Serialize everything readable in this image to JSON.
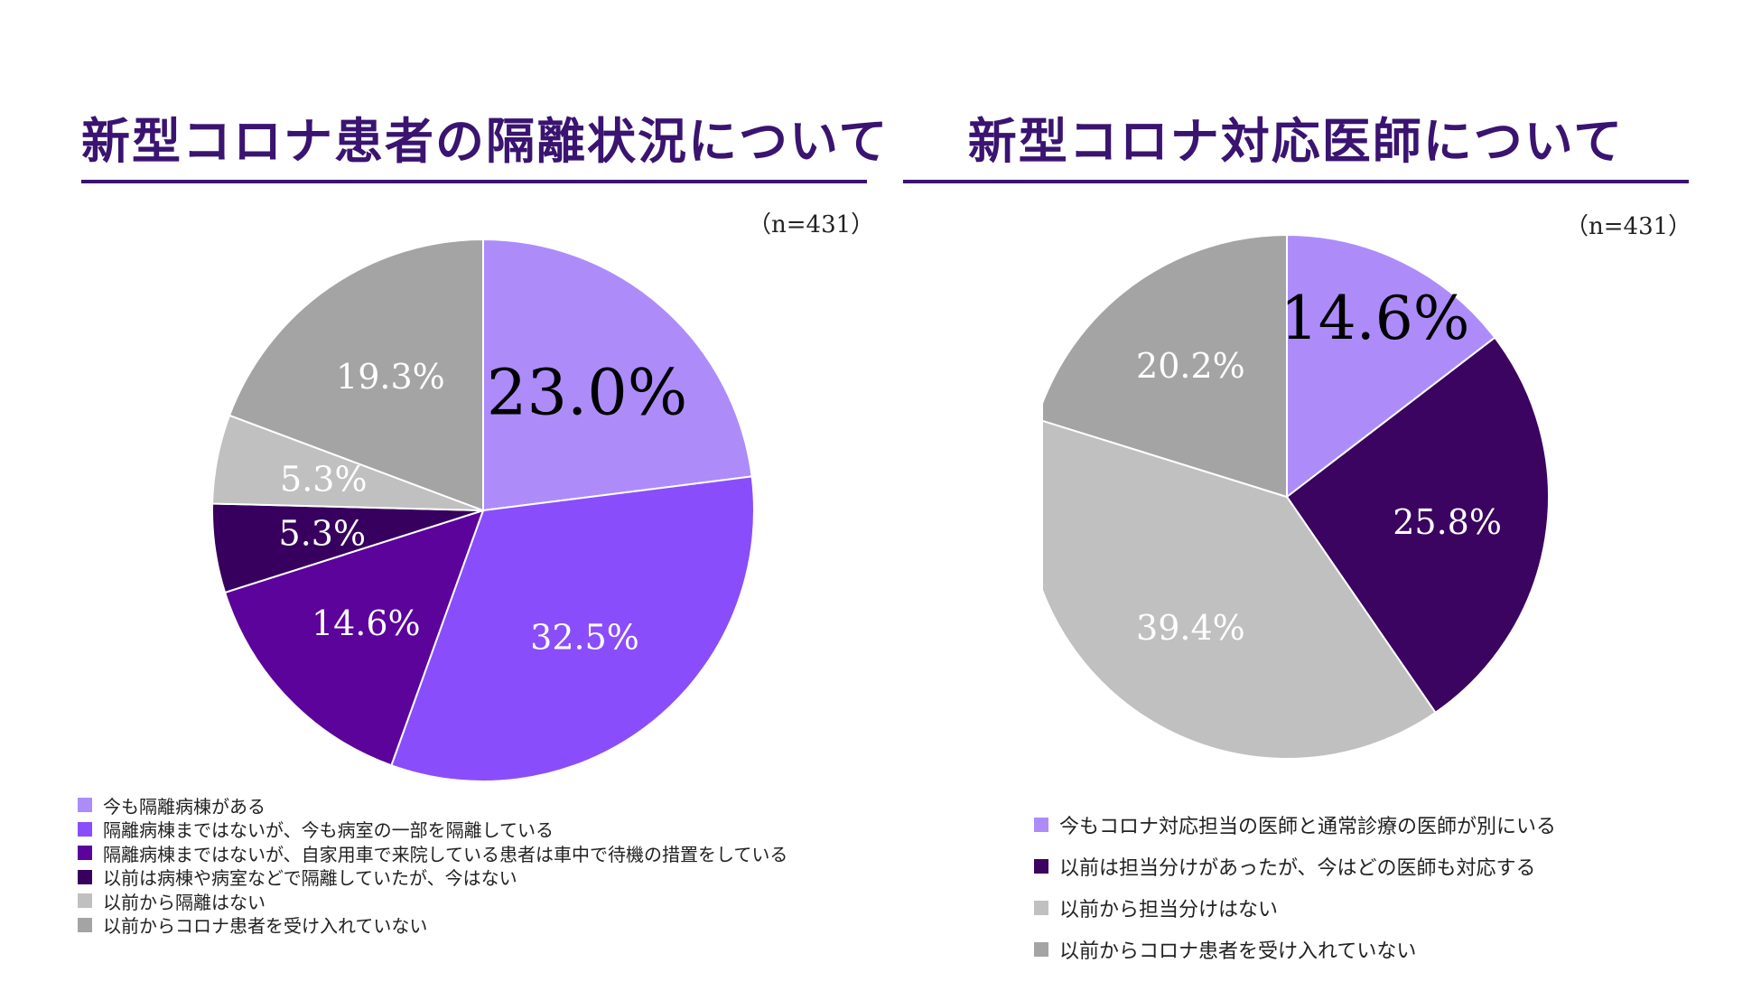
{
  "charts": [
    {
      "title": "新型コロナ患者の隔離状況について",
      "n_label": "（n=431）",
      "legend": [
        "今も隔離病棟がある",
        "隔離病棟まではないが、今も病室の一部を隔離している",
        "隔離病棟まではないが、自家用車で来院している患者は車中で待機の措置をしている",
        "以前は病棟や病室などで隔離していたが、今はない",
        "以前から隔離はない",
        "以前からコロナ患者を受け入れていない"
      ]
    },
    {
      "title": "新型コロナ対応医師について",
      "n_label": "（n=431）",
      "legend": [
        "今もコロナ対応担当の医師と通常診療の医師が別にいる",
        "以前は担当分けがあったが、今はどの医師も対応する",
        "以前から担当分けはない",
        "以前からコロナ患者を受け入れていない"
      ]
    }
  ],
  "chart_data": [
    {
      "type": "pie",
      "title": "新型コロナ患者の隔離状況について",
      "n": 431,
      "start_angle": "12 o'clock",
      "direction": "clockwise",
      "slices": [
        {
          "label": "今も隔離病棟がある",
          "value": 23.0,
          "display": "23.0%",
          "color": "#ad8cfa",
          "text_color": "#000000",
          "emphasis": true
        },
        {
          "label": "隔離病棟まではないが、今も病室の一部を隔離している",
          "value": 32.5,
          "display": "32.5%",
          "color": "#8a4dfb",
          "text_color": "#ffffff",
          "emphasis": false
        },
        {
          "label": "隔離病棟まではないが、自家用車で来院している患者は車中で待機の措置をしている",
          "value": 14.6,
          "display": "14.6%",
          "color": "#5b039b",
          "text_color": "#ffffff",
          "emphasis": false
        },
        {
          "label": "以前は病棟や病室などで隔離していたが、今はない",
          "value": 5.3,
          "display": "5.3%",
          "color": "#38005e",
          "text_color": "#ffffff",
          "emphasis": false
        },
        {
          "label": "以前から隔離はない",
          "value": 5.3,
          "display": "5.3%",
          "color": "#c0c0c0",
          "text_color": "#ffffff",
          "emphasis": false
        },
        {
          "label": "以前からコロナ患者を受け入れていない",
          "value": 19.3,
          "display": "19.3%",
          "color": "#a4a4a4",
          "text_color": "#ffffff",
          "emphasis": false
        }
      ]
    },
    {
      "type": "pie",
      "title": "新型コロナ対応医師について",
      "n": 431,
      "start_angle": "12 o'clock",
      "direction": "clockwise",
      "slices": [
        {
          "label": "今もコロナ対応担当の医師と通常診療の医師が別にいる",
          "value": 14.6,
          "display": "14.6%",
          "color": "#ad8cfa",
          "text_color": "#000000",
          "emphasis": true
        },
        {
          "label": "以前は担当分けがあったが、今はどの医師も対応する",
          "value": 25.8,
          "display": "25.8%",
          "color": "#3a0460",
          "text_color": "#ffffff",
          "emphasis": false
        },
        {
          "label": "以前から担当分けはない",
          "value": 39.4,
          "display": "39.4%",
          "color": "#c0c0c0",
          "text_color": "#ffffff",
          "emphasis": false
        },
        {
          "label": "以前からコロナ患者を受け入れていない",
          "value": 20.2,
          "display": "20.2%",
          "color": "#a4a4a4",
          "text_color": "#ffffff",
          "emphasis": false
        }
      ]
    }
  ]
}
